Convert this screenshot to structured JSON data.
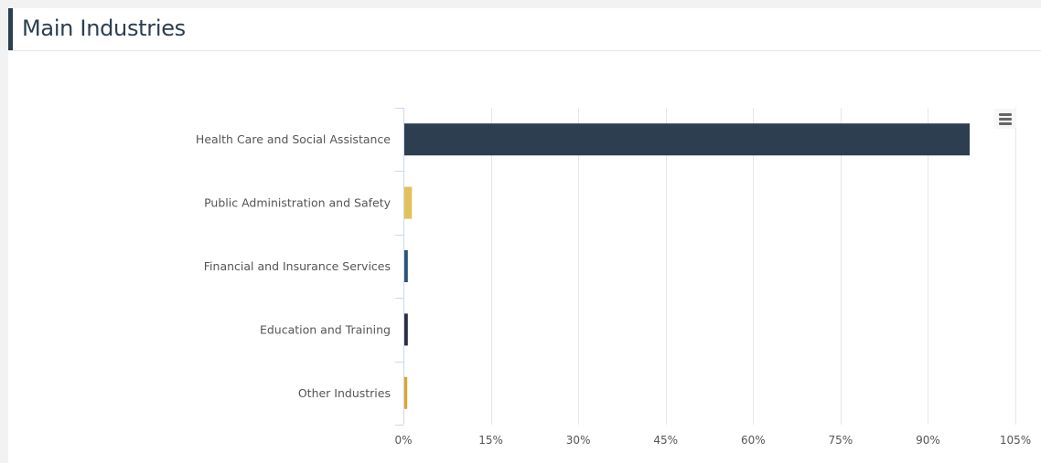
{
  "header": {
    "title": "Main Industries"
  },
  "menu": {
    "icon": "hamburger-menu-icon"
  },
  "colors": {
    "header_accent": "#2c3e50",
    "grid": "#e6e6e6"
  },
  "chart_data": {
    "type": "bar",
    "orientation": "horizontal",
    "title": "",
    "xlabel": "",
    "ylabel": "",
    "categories": [
      "Health Care and Social Assistance",
      "Public Administration and Safety",
      "Financial and Insurance Services",
      "Education and Training",
      "Other Industries"
    ],
    "values": [
      97,
      1.3,
      0.6,
      0.6,
      0.5
    ],
    "colors": [
      "#2c3e50",
      "#e1c15b",
      "#2a5478",
      "#2c2f45",
      "#d9a62a"
    ],
    "xlim": [
      0,
      105
    ],
    "ticks": [
      0,
      15,
      30,
      45,
      60,
      75,
      90,
      105
    ],
    "tick_labels": [
      "0%",
      "15%",
      "30%",
      "45%",
      "60%",
      "75%",
      "90%",
      "105%"
    ],
    "grid": true,
    "legend": "none"
  }
}
